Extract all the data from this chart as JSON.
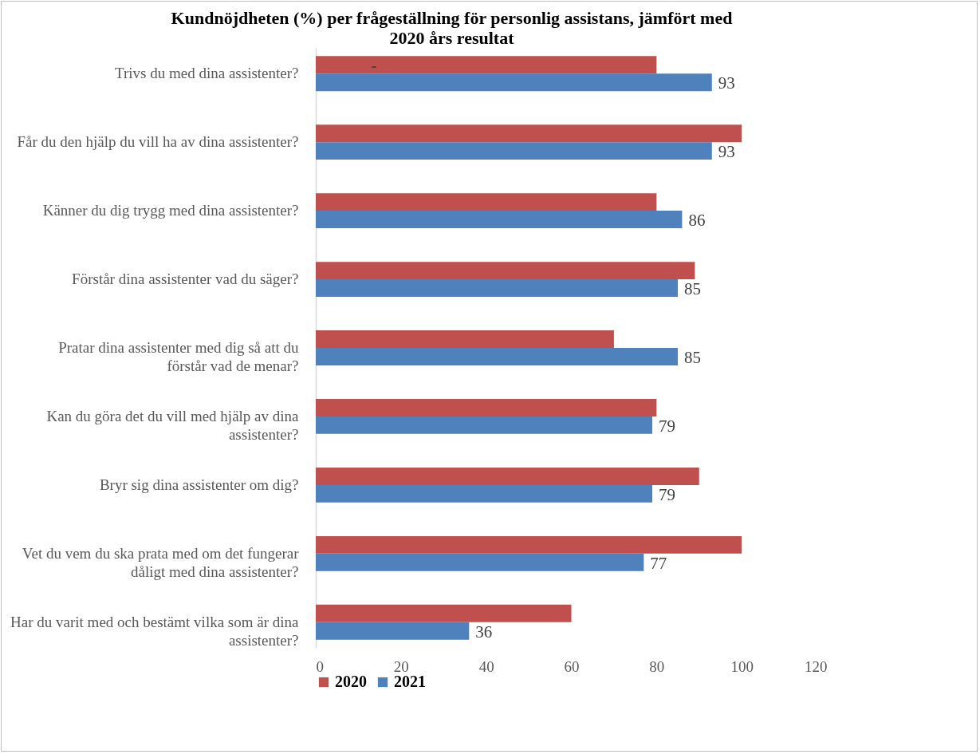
{
  "chart_data": {
    "type": "bar",
    "orientation": "horizontal",
    "title": "Kundnöjdheten (%) per frågeställning för personlig assistans, jämfört med 2020 års resultat",
    "categories": [
      "Trivs du med dina assistenter?",
      "Får du den hjälp du vill ha av dina assistenter?",
      "Känner du dig trygg med dina assistenter?",
      "Förstår dina assistenter vad du säger?",
      "Pratar dina assistenter med dig så att du förstår vad de menar?",
      "Kan du göra det du vill med hjälp av dina assistenter?",
      "Bryr sig dina assistenter om dig?",
      "Vet du vem du ska prata med om det fungerar dåligt med dina assistenter?",
      "Har du varit med och bestämt vilka som är dina assistenter?"
    ],
    "series": [
      {
        "name": "2020",
        "color": "#c0504d",
        "values": [
          80,
          100,
          80,
          89,
          70,
          80,
          90,
          100,
          60
        ],
        "value_labels": [
          "-",
          null,
          null,
          null,
          null,
          null,
          null,
          null,
          null
        ]
      },
      {
        "name": "2021",
        "color": "#4f81bd",
        "values": [
          93,
          93,
          86,
          85,
          85,
          79,
          79,
          77,
          36
        ],
        "value_labels": [
          "93",
          "93",
          "86",
          "85",
          "85",
          "79",
          "79",
          "77",
          "36"
        ]
      }
    ],
    "xlim": [
      0,
      120
    ],
    "xticks": [
      0,
      20,
      40,
      60,
      80,
      100,
      120
    ],
    "grid": false,
    "legend": "bottom"
  }
}
